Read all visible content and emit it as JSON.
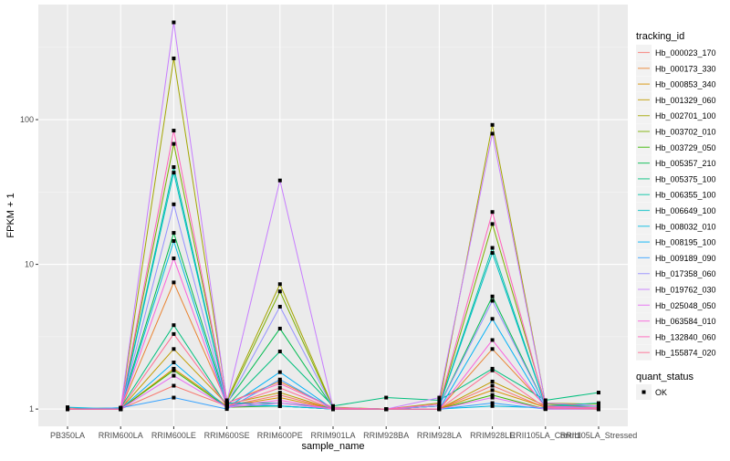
{
  "chart_data": {
    "type": "line",
    "xlabel": "sample_name",
    "ylabel": "FPKM + 1",
    "y_scale": "log10",
    "ylim": [
      0.76,
      624
    ],
    "y_ticks": [
      1,
      10,
      100
    ],
    "y_tick_labels": [
      "1",
      "10",
      "100"
    ],
    "grid": true,
    "legend_position": "right",
    "categories": [
      "PB350LA",
      "RRIM600LA",
      "RRIM600LE",
      "RRIM600SE",
      "RRIM600PE",
      "RRIM901LA",
      "RRIM928BA",
      "RRIM928LA",
      "RRIM928LE",
      "RRII105LA_Control",
      "RRII105LA_Stressed"
    ],
    "legend_color_title": "tracking_id",
    "legend_shape_title": "quant_status",
    "legend_shape_entries": [
      "OK"
    ],
    "series": [
      {
        "name": "Hb_000023_170",
        "color": "#F8766D",
        "values": [
          1.02,
          1,
          1.45,
          1.05,
          1.25,
          1,
          1,
          1,
          1.45,
          1.02,
          1.02
        ]
      },
      {
        "name": "Hb_000173_330",
        "color": "#EA8331",
        "values": [
          1,
          1,
          7.5,
          1.1,
          1.55,
          1.02,
          1,
          1,
          2.6,
          1.05,
          1.0
        ]
      },
      {
        "name": "Hb_000853_340",
        "color": "#D89000",
        "values": [
          1,
          1,
          1.9,
          1.05,
          1.2,
          1,
          1,
          1,
          1.35,
          1.03,
          1.05
        ]
      },
      {
        "name": "Hb_001329_060",
        "color": "#C09B00",
        "values": [
          1,
          1,
          2.6,
          1.08,
          1.3,
          1,
          1,
          1,
          1.55,
          1.05,
          1.05
        ]
      },
      {
        "name": "Hb_002701_100",
        "color": "#A3A500",
        "values": [
          1,
          1,
          265,
          1.15,
          7.3,
          1.03,
          1,
          1.1,
          92,
          1.1,
          1.08
        ]
      },
      {
        "name": "Hb_003702_010",
        "color": "#7CAE00",
        "values": [
          1,
          1,
          68,
          1.12,
          6.5,
          1.02,
          1,
          1.05,
          19,
          1.08,
          1.05
        ]
      },
      {
        "name": "Hb_003729_050",
        "color": "#39B600",
        "values": [
          1,
          1,
          1.85,
          1.03,
          1.05,
          1,
          1,
          1,
          1.25,
          1,
          1
        ]
      },
      {
        "name": "Hb_005357_210",
        "color": "#00BB4E",
        "values": [
          1,
          1.02,
          16.5,
          1.1,
          3.6,
          1.02,
          1,
          1.05,
          6,
          1.05,
          1.05
        ]
      },
      {
        "name": "Hb_005375_100",
        "color": "#00BF7D",
        "values": [
          1,
          1.02,
          3.8,
          1.05,
          2.5,
          1.05,
          1.2,
          1.15,
          1.9,
          1.15,
          1.3
        ]
      },
      {
        "name": "Hb_006355_100",
        "color": "#00C1A3",
        "values": [
          1,
          1,
          47,
          1.1,
          1.1,
          1.02,
          1,
          1.05,
          13,
          1.05,
          1.1
        ]
      },
      {
        "name": "Hb_006649_100",
        "color": "#00BFC4",
        "values": [
          1,
          1,
          43,
          1.1,
          1.05,
          1,
          1,
          1.05,
          12,
          1.05,
          1.05
        ]
      },
      {
        "name": "Hb_008032_010",
        "color": "#00BAE0",
        "values": [
          1.03,
          1,
          14.5,
          1.05,
          1.05,
          1,
          1,
          1,
          1.05,
          1.02,
          1
        ]
      },
      {
        "name": "Hb_008195_100",
        "color": "#00B0F6",
        "values": [
          1,
          1,
          2.1,
          1.02,
          1.8,
          1,
          1,
          1,
          4.2,
          1.02,
          1
        ]
      },
      {
        "name": "Hb_009189_090",
        "color": "#35A2FF",
        "values": [
          1,
          1.02,
          1.2,
          1,
          1.6,
          1,
          1,
          1,
          1.1,
          1,
          1
        ]
      },
      {
        "name": "Hb_017358_060",
        "color": "#9590FF",
        "values": [
          1,
          1,
          26,
          1.08,
          5.1,
          1.02,
          1,
          1.05,
          5.6,
          1.05,
          1
        ]
      },
      {
        "name": "Hb_019762_030",
        "color": "#C77CFF",
        "values": [
          1,
          1,
          470,
          1.12,
          38,
          1.02,
          1,
          1.2,
          80,
          1.1,
          1.05
        ]
      },
      {
        "name": "Hb_025048_050",
        "color": "#E76BF3",
        "values": [
          1,
          1,
          1.7,
          1.03,
          1.1,
          1,
          1,
          1,
          1.2,
          1,
          1
        ]
      },
      {
        "name": "Hb_063584_010",
        "color": "#FA62DB",
        "values": [
          1,
          1,
          11,
          1.05,
          1.15,
          1,
          1,
          1,
          3,
          1.03,
          1
        ]
      },
      {
        "name": "Hb_132840_060",
        "color": "#FF62BC",
        "values": [
          1,
          1,
          84,
          1.1,
          1.5,
          1.02,
          1,
          1.08,
          23,
          1.05,
          1.02
        ]
      },
      {
        "name": "Hb_155874_020",
        "color": "#FF6C91",
        "values": [
          1,
          1,
          3.3,
          1.05,
          1.4,
          1,
          1,
          1,
          1.85,
          1.02,
          1
        ]
      }
    ]
  }
}
